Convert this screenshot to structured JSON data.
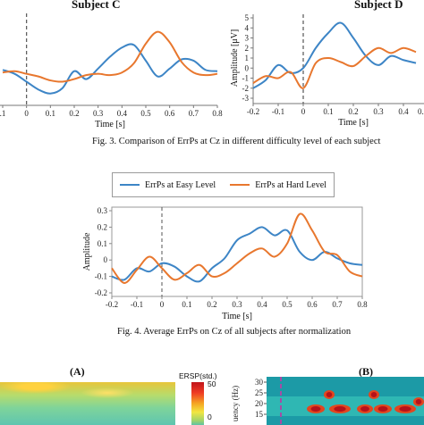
{
  "top_left": {
    "title": "Subject C",
    "xlabel": "Time [s]",
    "ticks": [
      ".1",
      "0",
      "0.1",
      "0.2",
      "0.3",
      "0.4",
      "0.5",
      "0.6",
      "0.7",
      "0.8"
    ]
  },
  "top_right": {
    "title": "Subject D",
    "xlabel": "Time [s]",
    "ylabel": "Amplitude [μV]",
    "xticks": [
      "-0.2",
      "-0.1",
      "0",
      "0.1",
      "0.2",
      "0.3",
      "0.4"
    ],
    "yticks": [
      "5",
      "4",
      "3",
      "2",
      "1",
      "0",
      "-1",
      "-2",
      "-3"
    ],
    "clipped_tick": "0."
  },
  "fig3_caption": "Fig. 3. Comparison of ErrPs at Cz in different difficulty level of each subject",
  "legend": {
    "easy": "ErrPs at Easy Level",
    "hard": "ErrPs at Hard Level"
  },
  "fig4_caption": "Fig. 4. Average ErrPs on Cz of all subjects after normalization",
  "panels": {
    "a_label": "(A)",
    "b_label": "(B)",
    "colorbar_title": "ERSP(std.)",
    "colorbar_max": "50",
    "colorbar_mid": "0",
    "freq_ylabel": "uency (Hz)",
    "freq_ticks": [
      "30",
      "25",
      "20",
      "15"
    ]
  },
  "colors": {
    "easy": "#3d85c6",
    "hard": "#e8772e",
    "onset": "#555555",
    "marker": "#a64ca6"
  },
  "chart_data": [
    {
      "type": "line",
      "title": "Subject C",
      "xlabel": "Time [s]",
      "ylabel": "",
      "xlim": [
        -0.1,
        0.8
      ],
      "series": [
        {
          "name": "ErrPs at Easy Level",
          "x": [
            -0.1,
            -0.05,
            0.0,
            0.05,
            0.1,
            0.15,
            0.2,
            0.25,
            0.3,
            0.35,
            0.4,
            0.45,
            0.5,
            0.55,
            0.6,
            0.65,
            0.7,
            0.75,
            0.8
          ],
          "values": [
            0.5,
            0.2,
            -0.4,
            -1.0,
            -1.3,
            -0.9,
            0.4,
            -0.2,
            0.6,
            1.5,
            2.2,
            2.4,
            1.2,
            0.0,
            0.6,
            1.3,
            1.2,
            0.5,
            0.4
          ]
        },
        {
          "name": "ErrPs at Hard Level",
          "x": [
            -0.1,
            -0.05,
            0.0,
            0.05,
            0.1,
            0.15,
            0.2,
            0.25,
            0.3,
            0.35,
            0.4,
            0.45,
            0.5,
            0.55,
            0.6,
            0.65,
            0.7,
            0.75,
            0.8
          ],
          "values": [
            0.3,
            0.4,
            0.2,
            0.0,
            -0.3,
            -0.4,
            -0.2,
            0.1,
            0.2,
            0.1,
            0.3,
            1.0,
            2.5,
            3.4,
            2.6,
            1.1,
            0.3,
            0.1,
            0.2
          ]
        }
      ]
    },
    {
      "type": "line",
      "title": "Subject D",
      "xlabel": "Time [s]",
      "ylabel": "Amplitude [μV]",
      "xlim": [
        -0.2,
        0.45
      ],
      "ylim": [
        -3,
        5
      ],
      "series": [
        {
          "name": "ErrPs at Easy Level",
          "x": [
            -0.2,
            -0.15,
            -0.1,
            -0.05,
            0.0,
            0.05,
            0.1,
            0.15,
            0.2,
            0.25,
            0.3,
            0.35,
            0.4,
            0.45
          ],
          "values": [
            -2.0,
            -1.2,
            0.3,
            -0.5,
            0.0,
            2.0,
            3.5,
            4.5,
            3.0,
            1.2,
            0.3,
            1.2,
            0.8,
            0.5
          ]
        },
        {
          "name": "ErrPs at Hard Level",
          "x": [
            -0.2,
            -0.15,
            -0.1,
            -0.05,
            0.0,
            0.05,
            0.1,
            0.15,
            0.2,
            0.25,
            0.3,
            0.35,
            0.4,
            0.45
          ],
          "values": [
            -1.5,
            -0.8,
            -1.0,
            -0.4,
            -2.0,
            0.5,
            1.0,
            0.6,
            0.2,
            1.2,
            2.0,
            1.5,
            2.0,
            1.6
          ]
        }
      ]
    },
    {
      "type": "line",
      "title": "",
      "xlabel": "Time [s]",
      "ylabel": "Amplitude",
      "xlim": [
        -0.2,
        0.8
      ],
      "ylim": [
        -0.2,
        0.3
      ],
      "xticks": [
        "-0.2",
        "-0.1",
        "0",
        "0.1",
        "0.2",
        "0.3",
        "0.4",
        "0.5",
        "0.6",
        "0.7",
        "0.8"
      ],
      "yticks": [
        "0.3",
        "0.2",
        "0.1",
        "0",
        "-0.1",
        "-0.2"
      ],
      "series": [
        {
          "name": "ErrPs at Easy Level",
          "x": [
            -0.2,
            -0.15,
            -0.1,
            -0.05,
            0.0,
            0.05,
            0.1,
            0.15,
            0.2,
            0.25,
            0.3,
            0.35,
            0.4,
            0.45,
            0.5,
            0.55,
            0.6,
            0.65,
            0.7,
            0.75,
            0.8
          ],
          "values": [
            -0.1,
            -0.12,
            -0.05,
            -0.07,
            -0.02,
            -0.04,
            -0.1,
            -0.13,
            -0.05,
            0.01,
            0.12,
            0.16,
            0.2,
            0.15,
            0.18,
            0.05,
            0.0,
            0.05,
            0.01,
            -0.02,
            -0.03
          ]
        },
        {
          "name": "ErrPs at Hard Level",
          "x": [
            -0.2,
            -0.15,
            -0.1,
            -0.05,
            0.0,
            0.05,
            0.1,
            0.15,
            0.2,
            0.25,
            0.3,
            0.35,
            0.4,
            0.45,
            0.5,
            0.55,
            0.6,
            0.65,
            0.7,
            0.75,
            0.8
          ],
          "values": [
            -0.05,
            -0.14,
            -0.06,
            0.02,
            -0.05,
            -0.12,
            -0.08,
            -0.03,
            -0.1,
            -0.08,
            -0.02,
            0.04,
            0.07,
            0.02,
            0.1,
            0.28,
            0.18,
            0.05,
            0.03,
            -0.07,
            -0.1
          ]
        }
      ]
    }
  ]
}
